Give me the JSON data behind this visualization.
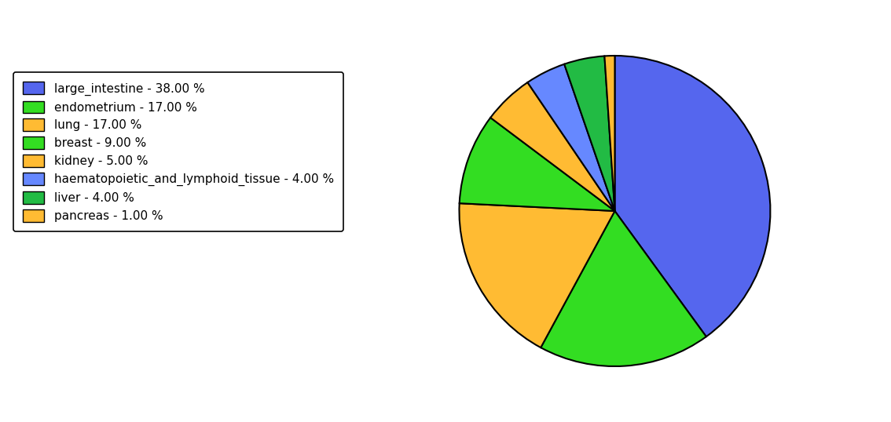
{
  "labels": [
    "large_intestine - 38.00 %",
    "endometrium - 17.00 %",
    "lung - 17.00 %",
    "breast - 9.00 %",
    "kidney - 5.00 %",
    "haematopoietic_and_lymphoid_tissue - 4.00 %",
    "liver - 4.00 %",
    "pancreas - 1.00 %"
  ],
  "values": [
    38,
    17,
    17,
    9,
    5,
    4,
    4,
    1
  ],
  "pie_colors": [
    "#5566EE",
    "#33DD22",
    "#FFBB33",
    "#33DD22",
    "#FFBB33",
    "#6688FF",
    "#22BB44",
    "#FFBB33"
  ],
  "legend_colors": [
    "#5566EE",
    "#33DD22",
    "#FFBB33",
    "#33DD22",
    "#FFBB33",
    "#6688FF",
    "#22BB44",
    "#FFBB33"
  ],
  "background_color": "#ffffff",
  "figsize": [
    11.34,
    5.38
  ],
  "dpi": 100,
  "startangle": 90,
  "legend_fontsize": 11
}
